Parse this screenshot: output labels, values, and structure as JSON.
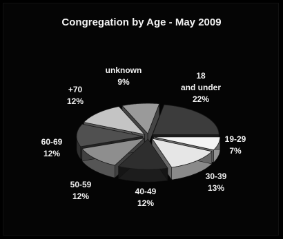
{
  "chart_data": {
    "type": "pie",
    "title": "Congregation by Age - May 2009",
    "slices": [
      {
        "label": "18\nand under",
        "value": 22,
        "pct_label": "22%",
        "color": "#3c3c3c"
      },
      {
        "label": "19-29",
        "value": 7,
        "pct_label": "7%",
        "color": "#f4f4f4"
      },
      {
        "label": "30-39",
        "value": 13,
        "pct_label": "13%",
        "color": "#e6e6e6"
      },
      {
        "label": "40-49",
        "value": 12,
        "pct_label": "12%",
        "color": "#2e2e2e"
      },
      {
        "label": "50-59",
        "value": 12,
        "pct_label": "12%",
        "color": "#8e8e8e"
      },
      {
        "label": "60-69",
        "value": 12,
        "pct_label": "12%",
        "color": "#505050"
      },
      {
        "label": "+70",
        "value": 12,
        "pct_label": "12%",
        "color": "#c4c4c4"
      },
      {
        "label": "unknown",
        "value": 9,
        "pct_label": "9%",
        "color": "#9a9a9a"
      }
    ],
    "legend": "none",
    "style": "3d-exploded"
  }
}
